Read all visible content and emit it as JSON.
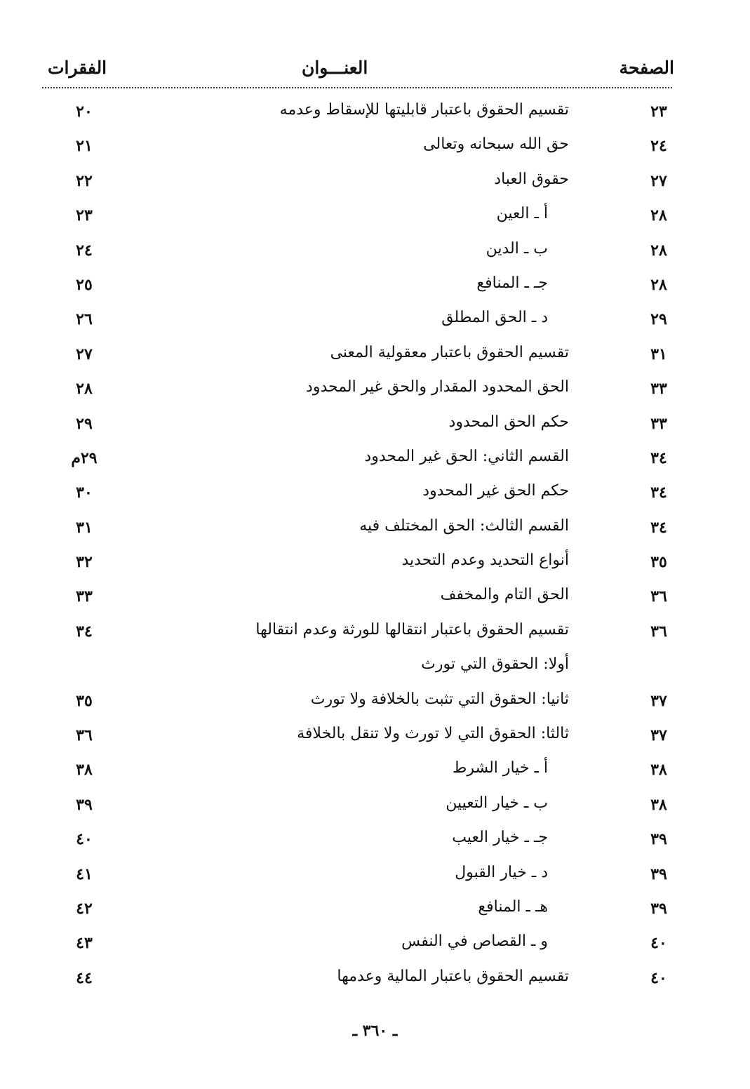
{
  "header": {
    "page": "الصفحة",
    "title": "العنـــوان",
    "paragraphs": "الفقرات"
  },
  "rows": [
    {
      "page": "٢٣",
      "title": "تقسيم الحقوق باعتبار قابليتها للإسقاط وعدمه",
      "para": "٢٠",
      "sub": false
    },
    {
      "page": "٢٤",
      "title": "حق الله سبحانه وتعالى",
      "para": "٢١",
      "sub": false
    },
    {
      "page": "٢٧",
      "title": "حقوق العباد",
      "para": "٢٢",
      "sub": false
    },
    {
      "page": "٢٨",
      "title": "أ ـ العين",
      "para": "٢٣",
      "sub": true
    },
    {
      "page": "٢٨",
      "title": "ب ـ الدين",
      "para": "٢٤",
      "sub": true
    },
    {
      "page": "٢٨",
      "title": "جـ ـ المنافع",
      "para": "٢٥",
      "sub": true
    },
    {
      "page": "٢٩",
      "title": "د ـ الحق المطلق",
      "para": "٢٦",
      "sub": true
    },
    {
      "page": "٣١",
      "title": "تقسيم الحقوق باعتبار معقولية المعنى",
      "para": "٢٧",
      "sub": false
    },
    {
      "page": "٣٣",
      "title": "الحق المحدود المقدار والحق غير المحدود",
      "para": "٢٨",
      "sub": false
    },
    {
      "page": "٣٣",
      "title": "حكم الحق المحدود",
      "para": "٢٩",
      "sub": false
    },
    {
      "page": "٣٤",
      "title": "القسم الثاني: الحق غير المحدود",
      "para": "٢٩م",
      "sub": false
    },
    {
      "page": "٣٤",
      "title": "حكم الحق غير المحدود",
      "para": "٣٠",
      "sub": false
    },
    {
      "page": "٣٤",
      "title": "القسم الثالث: الحق المختلف فيه",
      "para": "٣١",
      "sub": false
    },
    {
      "page": "٣٥",
      "title": "أنواع التحديد وعدم التحديد",
      "para": "٣٢",
      "sub": false
    },
    {
      "page": "٣٦",
      "title": "الحق التام والمخفف",
      "para": "٣٣",
      "sub": false
    },
    {
      "page": "٣٦",
      "title": "تقسيم الحقوق باعتبار انتقالها للورثة وعدم انتقالها",
      "para": "٣٤",
      "sub": false
    },
    {
      "page": "",
      "title": "أولا: الحقوق التي تورث",
      "para": "",
      "sub": false
    },
    {
      "page": "٣٧",
      "title": "ثانيا: الحقوق التي تثبت بالخلافة ولا تورث",
      "para": "٣٥",
      "sub": false
    },
    {
      "page": "٣٧",
      "title": "ثالثا: الحقوق التي لا تورث ولا تنقل بالخلافة",
      "para": "٣٦",
      "sub": false
    },
    {
      "page": "٣٨",
      "title": "أ ـ خيار الشرط",
      "para": "٣٨",
      "sub": true
    },
    {
      "page": "٣٨",
      "title": "ب ـ خيار التعيين",
      "para": "٣٩",
      "sub": true
    },
    {
      "page": "٣٩",
      "title": "جـ ـ خيار العيب",
      "para": "٤٠",
      "sub": true
    },
    {
      "page": "٣٩",
      "title": "د ـ خيار القبول",
      "para": "٤١",
      "sub": true
    },
    {
      "page": "٣٩",
      "title": "هـ ـ المنافع",
      "para": "٤٢",
      "sub": true
    },
    {
      "page": "٤٠",
      "title": "و ـ القصاص في النفس",
      "para": "٤٣",
      "sub": true
    },
    {
      "page": "٤٠",
      "title": "تقسيم الحقوق باعتبار المالية وعدمها",
      "para": "٤٤",
      "sub": false
    }
  ],
  "footer": {
    "page_number": "ـ ٣٦٠ ـ"
  }
}
